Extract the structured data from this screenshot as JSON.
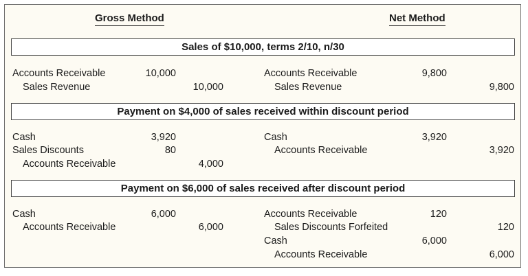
{
  "headers": {
    "gross": "Gross Method",
    "net": "Net Method"
  },
  "sections": [
    {
      "title": "Sales of $10,000, terms 2/10, n/30",
      "gross": [
        {
          "account": "Accounts Receivable",
          "debit": "10,000",
          "credit": ""
        },
        {
          "account": "Sales Revenue",
          "debit": "",
          "credit": "10,000"
        }
      ],
      "net": [
        {
          "account": "Accounts Receivable",
          "debit": "9,800",
          "credit": ""
        },
        {
          "account": "Sales Revenue",
          "debit": "",
          "credit": "9,800"
        }
      ]
    },
    {
      "title": "Payment on $4,000 of sales received within discount period",
      "gross": [
        {
          "account": "Cash",
          "debit": "3,920",
          "credit": ""
        },
        {
          "account": "Sales Discounts",
          "debit": "80",
          "credit": ""
        },
        {
          "account": "Accounts Receivable",
          "debit": "",
          "credit": "4,000"
        }
      ],
      "net": [
        {
          "account": "Cash",
          "debit": "3,920",
          "credit": ""
        },
        {
          "account": "Accounts Receivable",
          "debit": "",
          "credit": "3,920"
        }
      ]
    },
    {
      "title": "Payment on $6,000 of sales received after discount period",
      "gross": [
        {
          "account": "Cash",
          "debit": "6,000",
          "credit": ""
        },
        {
          "account": "Accounts Receivable",
          "debit": "",
          "credit": "6,000"
        }
      ],
      "net": [
        {
          "account": "Accounts Receivable",
          "debit": "120",
          "credit": ""
        },
        {
          "account": "Sales Discounts Forfeited",
          "debit": "",
          "credit": "120"
        },
        {
          "account": "Cash",
          "debit": "6,000",
          "credit": ""
        },
        {
          "account": "Accounts Receivable",
          "debit": "",
          "credit": "6,000"
        }
      ]
    }
  ]
}
